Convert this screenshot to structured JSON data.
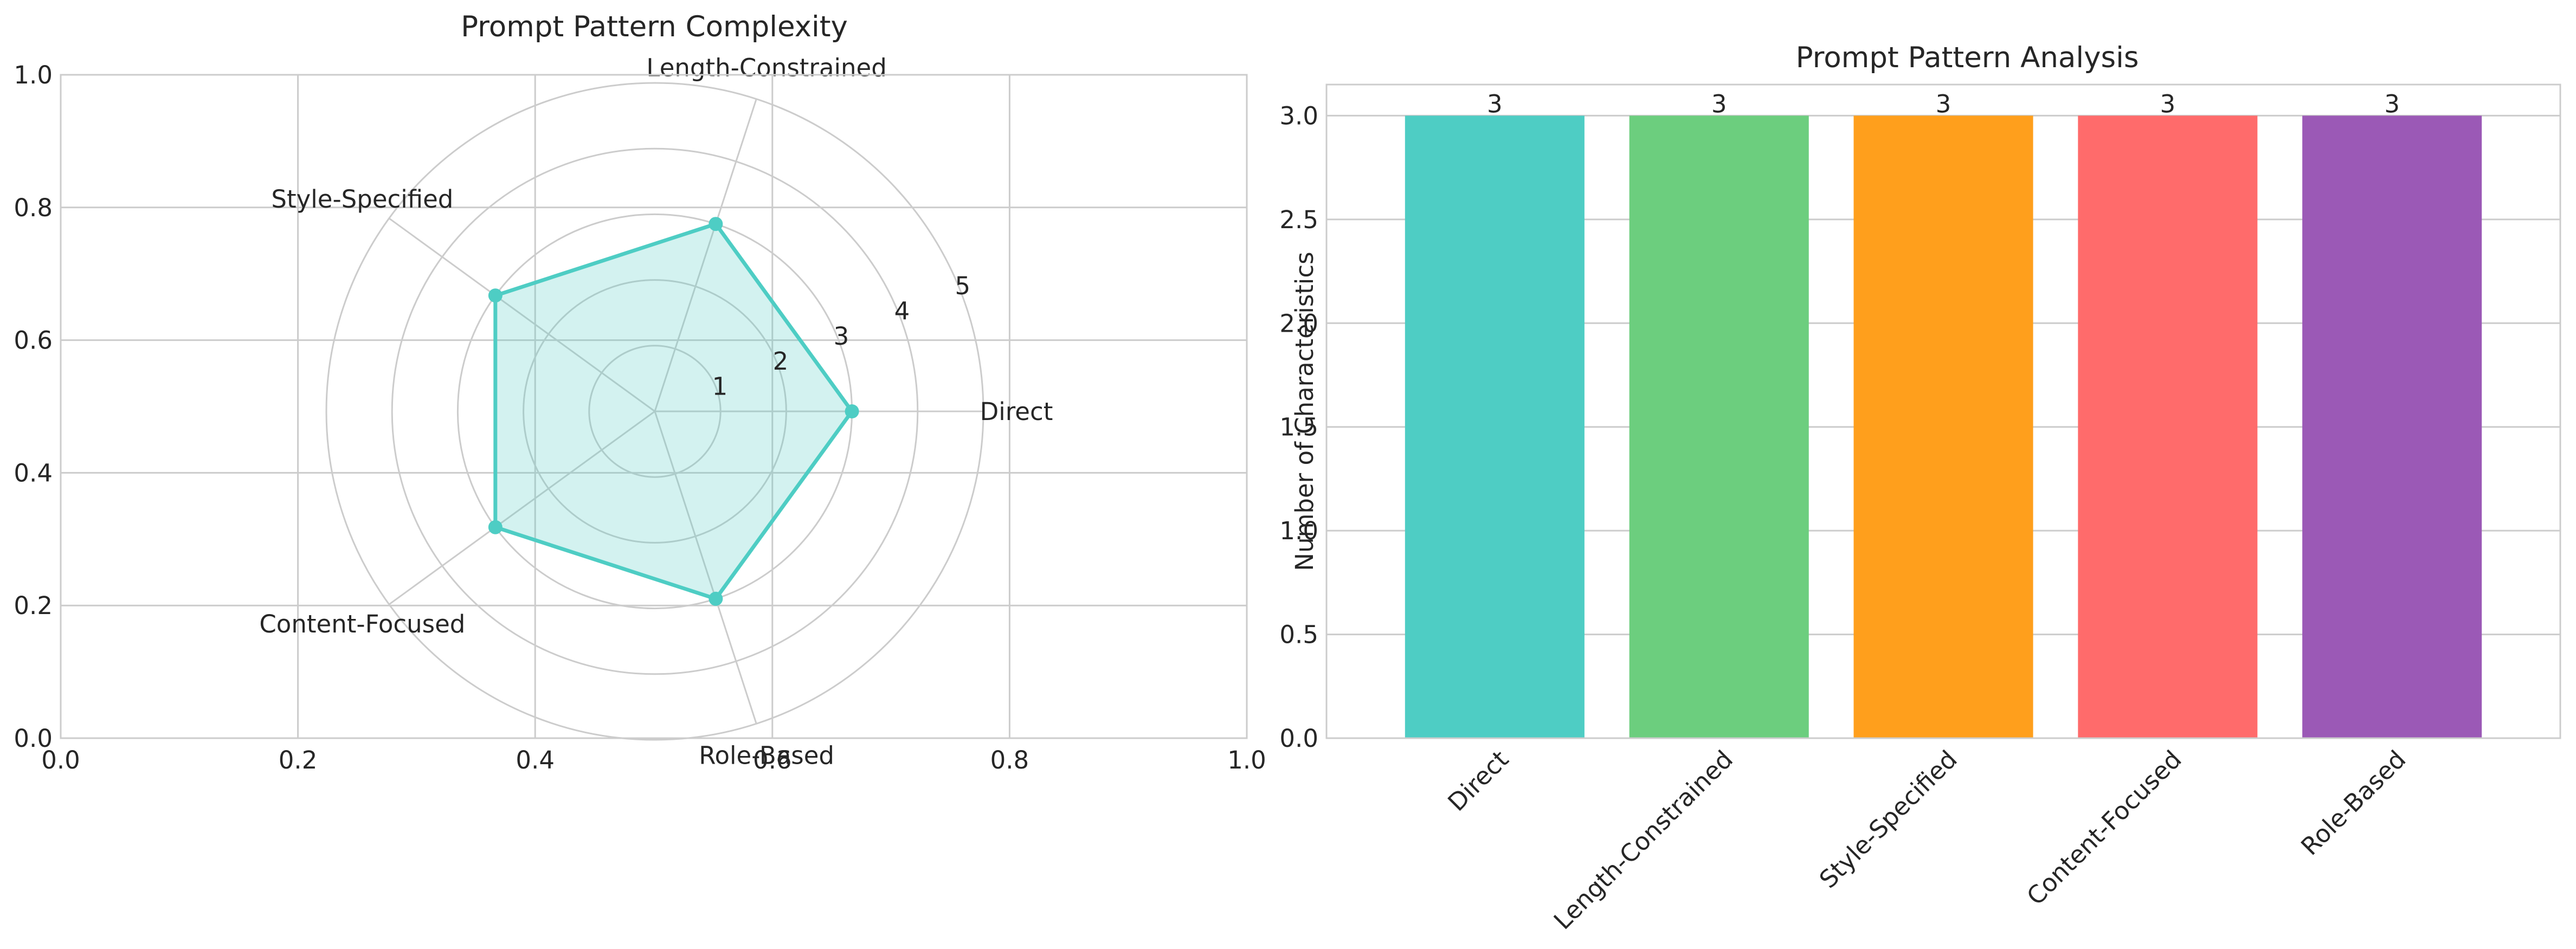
{
  "chart_data": [
    {
      "type": "radar",
      "title": "Prompt Pattern Complexity",
      "categories": [
        "Direct",
        "Length-Constrained",
        "Style-Specified",
        "Content-Focused",
        "Role-Based"
      ],
      "values": [
        3,
        3,
        3,
        3,
        3
      ],
      "r_ticks": [
        "1",
        "2",
        "3",
        "4",
        "5"
      ],
      "r_max": 5,
      "underlying_axes": {
        "x_ticks": [
          "0.0",
          "0.2",
          "0.4",
          "0.6",
          "0.8",
          "1.0"
        ],
        "y_ticks": [
          "0.0",
          "0.2",
          "0.4",
          "0.6",
          "0.8",
          "1.0"
        ],
        "xlim": [
          0,
          1
        ],
        "ylim": [
          0,
          1
        ]
      },
      "color": "#4ECDC4",
      "grid": true
    },
    {
      "type": "bar",
      "title": "Prompt Pattern Analysis",
      "categories": [
        "Direct",
        "Length-Constrained",
        "Style-Specified",
        "Content-Focused",
        "Role-Based"
      ],
      "values": [
        3,
        3,
        3,
        3,
        3
      ],
      "data_labels": [
        "3",
        "3",
        "3",
        "3",
        "3"
      ],
      "xlabel": "",
      "ylabel": "Number of Characteristics",
      "ylim": [
        0,
        3.15
      ],
      "y_ticks": [
        "0.0",
        "0.5",
        "1.0",
        "1.5",
        "2.0",
        "2.5",
        "3.0"
      ],
      "colors": [
        "#4ECDC4",
        "#6CCE7E",
        "#FF9F1C",
        "#FF6B6B",
        "#9B59B6"
      ],
      "grid": true
    }
  ]
}
